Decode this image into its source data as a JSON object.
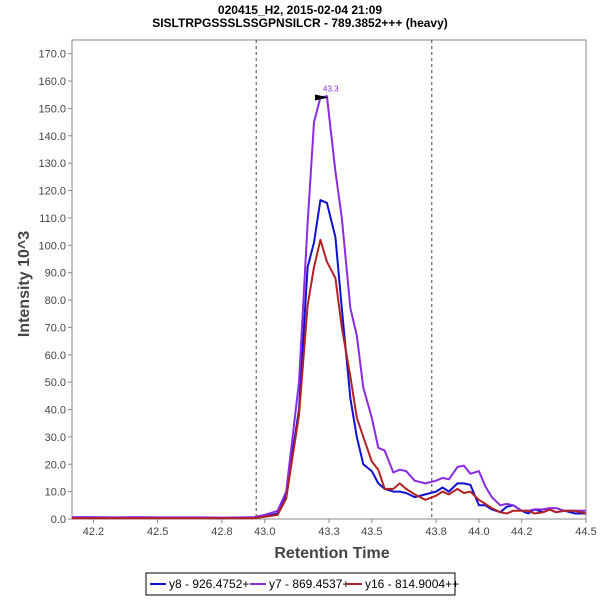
{
  "chart_data": {
    "type": "line",
    "title": "020415_H2, 2015-02-04 21:09",
    "subtitle": "SISLTRPGSSSLSSGPNSILCR - 789.3852+++ (heavy)",
    "xlabel": "Retention Time",
    "ylabel": "Intensity 10^3",
    "xlim": [
      42.1,
      44.5
    ],
    "ylim": [
      0,
      175
    ],
    "xticks": [
      "42.2",
      "42.5",
      "42.8",
      "43.0",
      "43.3",
      "43.5",
      "43.8",
      "44.0",
      "44.2",
      "44.5"
    ],
    "yticks": [
      "0.0",
      "10.0",
      "20.0",
      "30.0",
      "40.0",
      "50.0",
      "60.0",
      "70.0",
      "80.0",
      "90.0",
      "100.0",
      "110.0",
      "120.0",
      "130.0",
      "140.0",
      "150.0",
      "160.0",
      "170.0"
    ],
    "boundaries": [
      42.96,
      43.78
    ],
    "peak_annotation": {
      "label": "43.3",
      "x": 43.3,
      "y": 154
    },
    "x": [
      42.1,
      42.2,
      42.3,
      42.4,
      42.5,
      42.6,
      42.7,
      42.8,
      42.9,
      42.95,
      43.0,
      43.06,
      43.1,
      43.16,
      43.2,
      43.23,
      43.26,
      43.29,
      43.33,
      43.36,
      43.4,
      43.43,
      43.46,
      43.5,
      43.53,
      43.56,
      43.6,
      43.63,
      43.66,
      43.7,
      43.75,
      43.8,
      43.83,
      43.86,
      43.9,
      43.93,
      43.96,
      44.0,
      44.03,
      44.06,
      44.1,
      44.13,
      44.16,
      44.2,
      44.23,
      44.26,
      44.3,
      44.33,
      44.36,
      44.4,
      44.45,
      44.5
    ],
    "series": [
      {
        "name": "y8 - 926.4752+",
        "color": "#1010d0",
        "values": [
          0.5,
          0.5,
          0.4,
          0.5,
          0.4,
          0.5,
          0.4,
          0.3,
          0.5,
          0.5,
          1.0,
          2.0,
          9.0,
          40.0,
          92.0,
          101.0,
          116.5,
          115.5,
          103.0,
          77.0,
          44.0,
          30.0,
          20.0,
          17.5,
          13.0,
          11.0,
          10.0,
          10.0,
          9.5,
          8.0,
          9.0,
          10.0,
          11.5,
          10.0,
          13.0,
          13.0,
          12.5,
          5.0,
          5.0,
          3.5,
          2.5,
          4.5,
          5.0,
          3.0,
          2.0,
          3.5,
          2.5,
          3.5,
          2.5,
          3.0,
          2.0,
          2.0
        ]
      },
      {
        "name": "y7 - 869.4537+",
        "color": "#8a2be2",
        "values": [
          0.7,
          0.7,
          0.6,
          0.7,
          0.6,
          0.6,
          0.6,
          0.5,
          0.6,
          0.7,
          1.5,
          3.0,
          10.0,
          50.0,
          108.0,
          145.0,
          154.0,
          154.5,
          127.0,
          110.0,
          77.0,
          67.0,
          48.0,
          37.0,
          26.0,
          25.0,
          17.0,
          18.0,
          17.5,
          14.0,
          13.0,
          14.0,
          15.0,
          14.5,
          19.0,
          19.5,
          16.5,
          17.5,
          12.0,
          8.0,
          5.0,
          5.5,
          5.0,
          3.0,
          3.0,
          3.5,
          3.5,
          4.0,
          4.0,
          3.0,
          3.0,
          3.0
        ]
      },
      {
        "name": "y16 - 814.9004++",
        "color": "#b22222",
        "values": [
          0.3,
          0.3,
          0.3,
          0.3,
          0.3,
          0.3,
          0.3,
          0.3,
          0.3,
          0.3,
          0.8,
          1.5,
          7.5,
          38.0,
          78.0,
          92.0,
          102.0,
          94.0,
          88.0,
          70.0,
          52.0,
          37.0,
          30.0,
          21.0,
          18.0,
          11.0,
          11.0,
          13.0,
          11.0,
          9.0,
          7.0,
          8.5,
          10.0,
          9.0,
          11.0,
          9.5,
          10.0,
          7.0,
          5.5,
          4.0,
          2.5,
          2.0,
          3.0,
          3.0,
          3.0,
          2.0,
          2.5,
          3.5,
          2.5,
          3.0,
          3.0,
          2.0
        ]
      }
    ],
    "legend_position": "bottom"
  }
}
